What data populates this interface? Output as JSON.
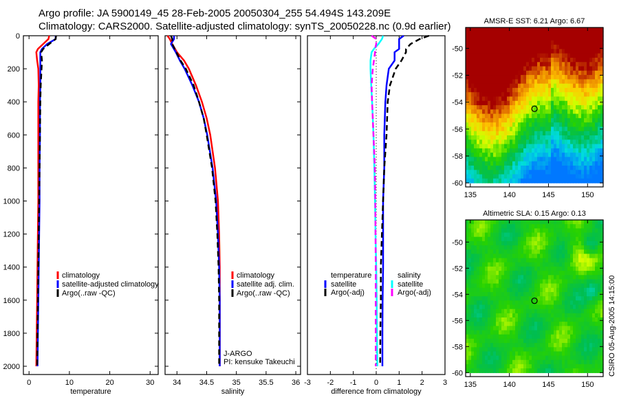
{
  "title_line1": "Argo profile: JA 5900149_45 28-Feb-2005 20050304_255 54.494S 143.209E",
  "title_line2": "Climatology: CARS2000. Satellite-adjusted climatology: synTS_20050228.nc (0.9d earlier)",
  "side_stamp": "CSIRO 05-Aug-2005 14:15:00",
  "colors": {
    "climatology": "#ff0000",
    "satellite": "#0000ff",
    "argo": "#000000",
    "sal_satellite": "#00ffff",
    "sal_argo": "#ff00ff"
  },
  "chart_data": [
    {
      "type": "line",
      "id": "temp",
      "xlabel": "temperature",
      "ylabel": "",
      "xlim": [
        -1.4,
        32
      ],
      "ylim": [
        0,
        2050
      ],
      "y_reversed": true,
      "xticks": [
        0,
        10,
        20,
        30
      ],
      "yticks": [
        0,
        200,
        400,
        600,
        800,
        1000,
        1200,
        1400,
        1600,
        1800,
        2000
      ],
      "depth": [
        0,
        20,
        50,
        80,
        100,
        150,
        200,
        300,
        400,
        600,
        800,
        1000,
        1200,
        1400,
        1600,
        1800,
        2000
      ],
      "series": [
        {
          "name": "climatology",
          "style": "solid",
          "color": "#ff0000",
          "values": [
            5.0,
            4.8,
            3.5,
            2.2,
            1.8,
            2.0,
            2.3,
            2.4,
            2.3,
            2.3,
            2.3,
            2.3,
            2.2,
            2.1,
            2.0,
            1.9,
            1.8
          ]
        },
        {
          "name": "satellite-adjusted climatology",
          "style": "solid",
          "color": "#0000ff",
          "values": [
            6.6,
            6.6,
            4.5,
            3.2,
            2.8,
            2.8,
            2.8,
            2.8,
            2.7,
            2.7,
            2.6,
            2.6,
            2.5,
            2.4,
            2.3,
            2.2,
            2.1
          ]
        },
        {
          "name": "Argo(..raw -QC)",
          "style": "dashed",
          "color": "#000000",
          "values": [
            6.7,
            6.6,
            5.0,
            3.5,
            3.0,
            3.2,
            3.1,
            2.9,
            2.8,
            2.7,
            2.6,
            2.5,
            2.4,
            2.3,
            2.2,
            2.1,
            2.0
          ]
        }
      ],
      "legend": [
        "climatology",
        "satellite-adjusted climatology",
        "Argo(..raw -QC)"
      ]
    },
    {
      "type": "line",
      "id": "sal",
      "xlabel": "salinity",
      "ylabel": "",
      "xlim": [
        33.8,
        36.08
      ],
      "ylim": [
        0,
        2050
      ],
      "y_reversed": true,
      "xticks": [
        34,
        34.5,
        35,
        35.5,
        36
      ],
      "yticks": [
        0,
        200,
        400,
        600,
        800,
        1000,
        1200,
        1400,
        1600,
        1800,
        2000
      ],
      "depth": [
        0,
        20,
        50,
        100,
        150,
        200,
        300,
        400,
        500,
        600,
        800,
        1000,
        1200,
        1400,
        1600,
        1800,
        2000
      ],
      "series": [
        {
          "name": "climatology",
          "style": "solid",
          "color": "#ff0000",
          "values": [
            33.84,
            33.88,
            33.92,
            34.0,
            34.12,
            34.2,
            34.32,
            34.42,
            34.5,
            34.56,
            34.64,
            34.69,
            34.71,
            34.72,
            34.72,
            34.72,
            34.72
          ]
        },
        {
          "name": "satellite adj. clim.",
          "style": "solid",
          "color": "#0000ff",
          "values": [
            33.95,
            33.95,
            33.9,
            33.98,
            34.05,
            34.13,
            34.26,
            34.37,
            34.45,
            34.51,
            34.6,
            34.66,
            34.69,
            34.71,
            34.72,
            34.72,
            34.72
          ]
        },
        {
          "name": "Argo(..raw -QC)",
          "style": "dashed",
          "color": "#000000",
          "values": [
            33.9,
            33.92,
            33.92,
            33.99,
            34.06,
            34.15,
            34.28,
            34.37,
            34.45,
            34.5,
            34.59,
            34.65,
            34.68,
            34.7,
            34.71,
            34.71,
            34.71
          ]
        }
      ],
      "legend": [
        "climatology",
        "satellite adj. clim.",
        "Argo(..raw -QC)"
      ],
      "annotation": [
        "J-ARGO",
        "PI: kensuke Takeuchi"
      ]
    },
    {
      "type": "line",
      "id": "diff",
      "xlabel": "difference from climatology",
      "ylabel": "",
      "xlim": [
        -3,
        3
      ],
      "ylim": [
        0,
        2050
      ],
      "y_reversed": true,
      "xticks": [
        -3,
        -2,
        -1,
        0,
        1,
        2,
        3
      ],
      "depth": [
        0,
        20,
        50,
        80,
        100,
        150,
        200,
        300,
        400,
        600,
        800,
        1000,
        1200,
        1400,
        1600,
        1800,
        2000
      ],
      "series": [
        {
          "name": "temperature satellite",
          "style": "solid",
          "color": "#0000ff",
          "values": [
            1.2,
            1.0,
            1.0,
            1.0,
            0.8,
            0.8,
            0.55,
            0.45,
            0.4,
            0.35,
            0.35,
            0.3,
            0.3,
            0.3,
            0.28,
            0.27,
            0.27
          ]
        },
        {
          "name": "temperature Argo(-adj)",
          "style": "dashed",
          "color": "#000000",
          "values": [
            2.3,
            1.9,
            1.5,
            1.3,
            1.3,
            1.1,
            0.85,
            0.6,
            0.5,
            0.45,
            0.35,
            0.3,
            0.25,
            0.2,
            0.2,
            0.18,
            0.17
          ]
        },
        {
          "name": "salinity satellite",
          "style": "solid",
          "color": "#00ffff",
          "values": [
            0.3,
            0.25,
            0.1,
            -0.1,
            -0.2,
            -0.25,
            -0.25,
            -0.22,
            -0.18,
            -0.12,
            -0.08,
            -0.05,
            -0.03,
            0.0,
            0.02,
            0.03,
            0.05
          ]
        },
        {
          "name": "salinity Argo(-adj)",
          "style": "dashed",
          "color": "#ff00ff",
          "values": [
            -0.2,
            0.0,
            0.0,
            -0.05,
            -0.05,
            -0.1,
            -0.15,
            -0.2,
            -0.18,
            -0.12,
            -0.06,
            -0.04,
            -0.03,
            -0.02,
            -0.02,
            -0.02,
            -0.02
          ]
        }
      ],
      "legend_temperature": {
        "heading": "temperature",
        "items": [
          "satellite",
          "Argo(-adj)"
        ]
      },
      "legend_salinity": {
        "heading": "salinity",
        "items": [
          "satellite",
          "Argo(-adj)"
        ]
      }
    },
    {
      "type": "heatmap",
      "id": "sst",
      "title": "AMSR-E SST: 6.21 Argo: 6.67",
      "xlim": [
        134.4,
        152
      ],
      "ylim": [
        -60.3,
        -48.45
      ],
      "xticks": [
        135,
        140,
        145,
        150
      ],
      "yticks": [
        -50,
        -52,
        -54,
        -56,
        -58,
        -60
      ],
      "marker": {
        "lon": 143.209,
        "lat": -54.494
      }
    },
    {
      "type": "heatmap",
      "id": "sla",
      "title": "Altimetric SLA: 0.15 Argo: 0.13",
      "xlim": [
        134.4,
        152
      ],
      "ylim": [
        -60.3,
        -48.3
      ],
      "xticks": [
        135,
        140,
        145,
        150
      ],
      "yticks": [
        -50,
        -52,
        -54,
        -56,
        -58,
        -60
      ],
      "marker": {
        "lon": 143.209,
        "lat": -54.494
      }
    }
  ]
}
